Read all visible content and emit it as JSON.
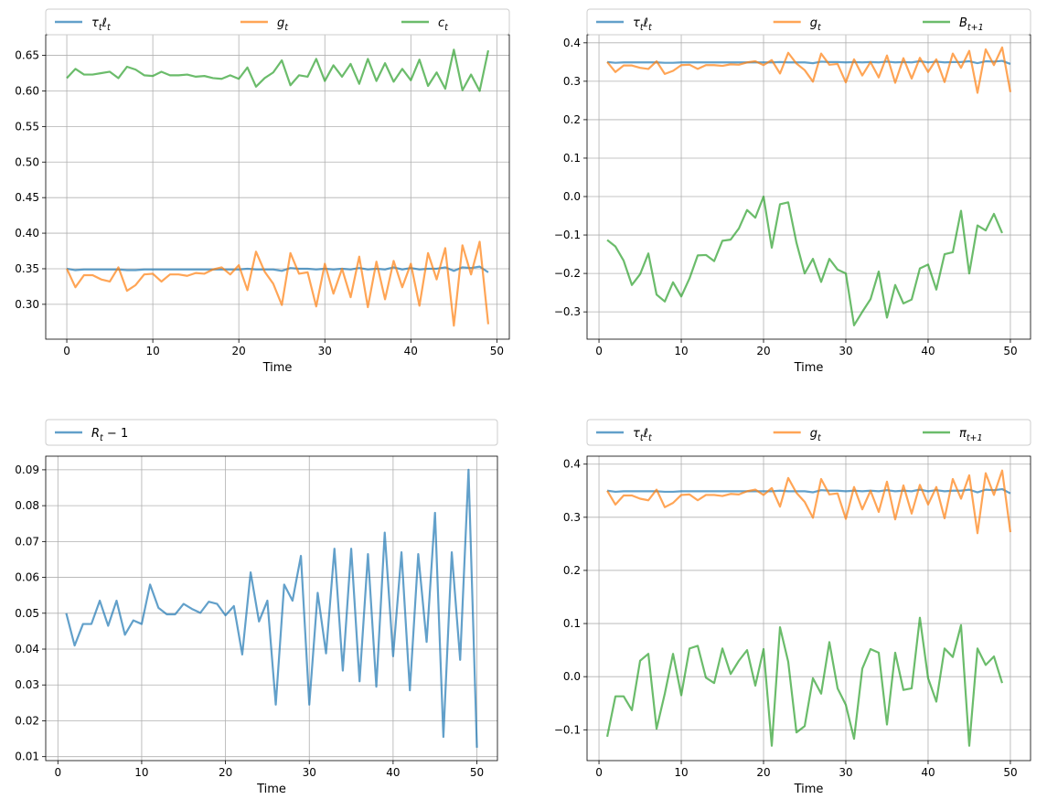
{
  "chart_data": [
    {
      "type": "line",
      "xlabel": "Time",
      "ylabel": "",
      "xlim": [
        -2.45,
        51.45
      ],
      "ylim": [
        0.251,
        0.679
      ],
      "xticks": [
        0,
        10,
        20,
        30,
        40,
        50
      ],
      "yticks": [
        0.3,
        0.35,
        0.4,
        0.45,
        0.5,
        0.55,
        0.6,
        0.65
      ],
      "ytick_format": 2,
      "grid": true,
      "legend_position": "top",
      "series": [
        {
          "name": "τtℓt",
          "color": "#1f77b4",
          "x0": 0,
          "values": [
            0.35,
            0.348,
            0.349,
            0.349,
            0.349,
            0.349,
            0.349,
            0.348,
            0.348,
            0.349,
            0.349,
            0.349,
            0.349,
            0.349,
            0.349,
            0.349,
            0.349,
            0.349,
            0.349,
            0.349,
            0.349,
            0.35,
            0.349,
            0.349,
            0.349,
            0.347,
            0.351,
            0.35,
            0.35,
            0.349,
            0.35,
            0.349,
            0.35,
            0.349,
            0.351,
            0.349,
            0.35,
            0.349,
            0.352,
            0.349,
            0.351,
            0.349,
            0.35,
            0.35,
            0.352,
            0.347,
            0.352,
            0.351,
            0.353,
            0.345
          ]
        },
        {
          "name": "gt",
          "color": "#ff7f0e",
          "x0": 0,
          "values": [
            0.35,
            0.324,
            0.341,
            0.341,
            0.335,
            0.332,
            0.352,
            0.319,
            0.327,
            0.342,
            0.343,
            0.332,
            0.342,
            0.342,
            0.34,
            0.344,
            0.343,
            0.349,
            0.352,
            0.342,
            0.355,
            0.32,
            0.374,
            0.346,
            0.329,
            0.299,
            0.372,
            0.343,
            0.345,
            0.297,
            0.357,
            0.315,
            0.35,
            0.31,
            0.367,
            0.296,
            0.36,
            0.307,
            0.361,
            0.324,
            0.357,
            0.298,
            0.372,
            0.335,
            0.379,
            0.27,
            0.383,
            0.342,
            0.388,
            0.272
          ]
        },
        {
          "name": "ct",
          "color": "#2ca02c",
          "x0": 0,
          "values": [
            0.618,
            0.631,
            0.623,
            0.623,
            0.625,
            0.627,
            0.618,
            0.634,
            0.63,
            0.622,
            0.621,
            0.627,
            0.622,
            0.622,
            0.623,
            0.62,
            0.621,
            0.618,
            0.617,
            0.622,
            0.617,
            0.633,
            0.606,
            0.618,
            0.626,
            0.643,
            0.608,
            0.622,
            0.62,
            0.645,
            0.614,
            0.636,
            0.62,
            0.638,
            0.61,
            0.645,
            0.614,
            0.639,
            0.613,
            0.631,
            0.615,
            0.644,
            0.607,
            0.626,
            0.603,
            0.658,
            0.601,
            0.623,
            0.6,
            0.657
          ]
        }
      ]
    },
    {
      "type": "line",
      "xlabel": "Time",
      "ylabel": "",
      "xlim": [
        -1.45,
        52.45
      ],
      "ylim": [
        -0.371,
        0.421
      ],
      "xticks": [
        0,
        10,
        20,
        30,
        40,
        50
      ],
      "yticks": [
        -0.3,
        -0.2,
        -0.1,
        0.0,
        0.1,
        0.2,
        0.3,
        0.4
      ],
      "ytick_format": 1,
      "grid": true,
      "legend_position": "top",
      "series": [
        {
          "name": "τtℓt",
          "color": "#1f77b4",
          "x0": 1,
          "values": [
            0.35,
            0.348,
            0.349,
            0.349,
            0.349,
            0.349,
            0.349,
            0.348,
            0.348,
            0.349,
            0.349,
            0.349,
            0.349,
            0.349,
            0.349,
            0.349,
            0.349,
            0.349,
            0.349,
            0.349,
            0.349,
            0.35,
            0.349,
            0.349,
            0.349,
            0.347,
            0.351,
            0.35,
            0.35,
            0.349,
            0.35,
            0.349,
            0.35,
            0.349,
            0.351,
            0.349,
            0.35,
            0.349,
            0.352,
            0.349,
            0.351,
            0.349,
            0.35,
            0.35,
            0.352,
            0.347,
            0.352,
            0.351,
            0.353,
            0.345
          ]
        },
        {
          "name": "gt",
          "color": "#ff7f0e",
          "x0": 1,
          "values": [
            0.35,
            0.324,
            0.341,
            0.341,
            0.335,
            0.332,
            0.352,
            0.319,
            0.327,
            0.342,
            0.343,
            0.332,
            0.342,
            0.342,
            0.34,
            0.344,
            0.343,
            0.349,
            0.352,
            0.342,
            0.355,
            0.32,
            0.374,
            0.346,
            0.329,
            0.299,
            0.372,
            0.343,
            0.345,
            0.297,
            0.357,
            0.315,
            0.35,
            0.31,
            0.367,
            0.296,
            0.36,
            0.307,
            0.361,
            0.324,
            0.357,
            0.298,
            0.372,
            0.335,
            0.379,
            0.27,
            0.383,
            0.342,
            0.388,
            0.272
          ]
        },
        {
          "name": "Bt+1",
          "color": "#2ca02c",
          "x0": 1,
          "values": [
            -0.113,
            -0.13,
            -0.167,
            -0.23,
            -0.202,
            -0.148,
            -0.255,
            -0.273,
            -0.223,
            -0.26,
            -0.213,
            -0.153,
            -0.152,
            -0.168,
            -0.115,
            -0.112,
            -0.083,
            -0.035,
            -0.055,
            0.0,
            -0.133,
            -0.02,
            -0.015,
            -0.12,
            -0.2,
            -0.162,
            -0.222,
            -0.162,
            -0.19,
            -0.2,
            -0.335,
            -0.3,
            -0.267,
            -0.195,
            -0.315,
            -0.23,
            -0.278,
            -0.268,
            -0.187,
            -0.177,
            -0.242,
            -0.15,
            -0.145,
            -0.037,
            -0.2,
            -0.075,
            -0.088,
            -0.045,
            -0.095
          ]
        }
      ]
    },
    {
      "type": "line",
      "xlabel": "Time",
      "ylabel": "",
      "xlim": [
        -1.45,
        52.45
      ],
      "ylim": [
        0.0089,
        0.0938
      ],
      "xticks": [
        0,
        10,
        20,
        30,
        40,
        50
      ],
      "yticks": [
        0.01,
        0.02,
        0.03,
        0.04,
        0.05,
        0.06,
        0.07,
        0.08,
        0.09
      ],
      "ytick_format": 2,
      "grid": true,
      "legend_position": "top",
      "series": [
        {
          "name": "Rt − 1",
          "color": "#1f77b4",
          "x0": 1,
          "values": [
            0.05,
            0.041,
            0.047,
            0.047,
            0.0535,
            0.0465,
            0.0535,
            0.044,
            0.048,
            0.047,
            0.058,
            0.0515,
            0.0497,
            0.0497,
            0.0526,
            0.0512,
            0.0501,
            0.0532,
            0.0526,
            0.0494,
            0.052,
            0.0385,
            0.0614,
            0.0477,
            0.0535,
            0.0245,
            0.058,
            0.0535,
            0.066,
            0.0245,
            0.0557,
            0.0388,
            0.068,
            0.034,
            0.068,
            0.031,
            0.0665,
            0.0295,
            0.0725,
            0.038,
            0.067,
            0.0285,
            0.0665,
            0.042,
            0.078,
            0.0155,
            0.067,
            0.037,
            0.09,
            0.0125
          ]
        }
      ]
    },
    {
      "type": "line",
      "xlabel": "Time",
      "ylabel": "",
      "xlim": [
        -1.45,
        52.45
      ],
      "ylim": [
        -0.158,
        0.415
      ],
      "xticks": [
        0,
        10,
        20,
        30,
        40,
        50
      ],
      "yticks": [
        -0.1,
        0.0,
        0.1,
        0.2,
        0.3,
        0.4
      ],
      "ytick_format": 1,
      "grid": true,
      "legend_position": "top",
      "series": [
        {
          "name": "τtℓt",
          "color": "#1f77b4",
          "x0": 1,
          "values": [
            0.35,
            0.348,
            0.349,
            0.349,
            0.349,
            0.349,
            0.349,
            0.348,
            0.348,
            0.349,
            0.349,
            0.349,
            0.349,
            0.349,
            0.349,
            0.349,
            0.349,
            0.349,
            0.349,
            0.349,
            0.349,
            0.35,
            0.349,
            0.349,
            0.349,
            0.347,
            0.351,
            0.35,
            0.35,
            0.349,
            0.35,
            0.349,
            0.35,
            0.349,
            0.351,
            0.349,
            0.35,
            0.349,
            0.352,
            0.349,
            0.351,
            0.349,
            0.35,
            0.35,
            0.352,
            0.347,
            0.352,
            0.351,
            0.353,
            0.345
          ]
        },
        {
          "name": "gt",
          "color": "#ff7f0e",
          "x0": 1,
          "values": [
            0.35,
            0.324,
            0.341,
            0.341,
            0.335,
            0.332,
            0.352,
            0.319,
            0.327,
            0.342,
            0.343,
            0.332,
            0.342,
            0.342,
            0.34,
            0.344,
            0.343,
            0.349,
            0.352,
            0.342,
            0.355,
            0.32,
            0.374,
            0.346,
            0.329,
            0.299,
            0.372,
            0.343,
            0.345,
            0.297,
            0.357,
            0.315,
            0.35,
            0.31,
            0.367,
            0.296,
            0.36,
            0.307,
            0.361,
            0.324,
            0.357,
            0.298,
            0.372,
            0.335,
            0.379,
            0.27,
            0.383,
            0.342,
            0.388,
            0.272
          ]
        },
        {
          "name": "πt+1",
          "color": "#2ca02c",
          "x0": 1,
          "values": [
            -0.113,
            -0.037,
            -0.037,
            -0.063,
            0.03,
            0.043,
            -0.098,
            -0.032,
            0.043,
            -0.035,
            0.053,
            0.058,
            -0.002,
            -0.012,
            0.053,
            0.005,
            0.03,
            0.05,
            -0.017,
            0.052,
            -0.13,
            0.093,
            0.028,
            -0.105,
            -0.093,
            -0.003,
            -0.032,
            0.065,
            -0.022,
            -0.053,
            -0.117,
            0.015,
            0.052,
            0.045,
            -0.09,
            0.045,
            -0.025,
            -0.022,
            0.111,
            -0.003,
            -0.047,
            0.053,
            0.037,
            0.097,
            -0.13,
            0.053,
            0.022,
            0.038,
            -0.012
          ]
        }
      ]
    }
  ]
}
